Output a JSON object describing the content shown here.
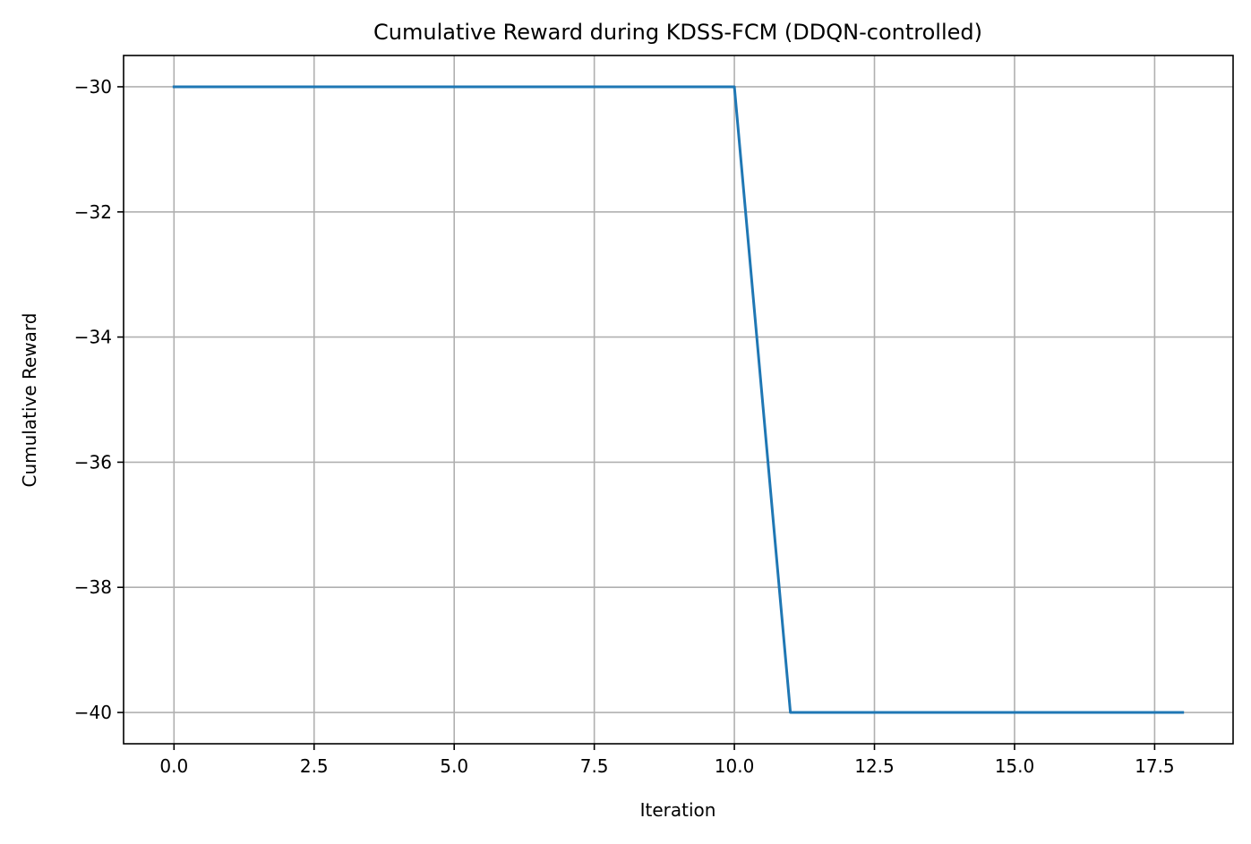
{
  "chart_data": {
    "type": "line",
    "title": "Cumulative Reward during KDSS-FCM (DDQN-controlled)",
    "xlabel": "Iteration",
    "ylabel": "Cumulative Reward",
    "xlim": [
      -0.9,
      18.9
    ],
    "ylim": [
      -40.5,
      -29.5
    ],
    "xticks": [
      0.0,
      2.5,
      5.0,
      7.5,
      10.0,
      12.5,
      15.0,
      17.5
    ],
    "xtick_labels": [
      "0.0",
      "2.5",
      "5.0",
      "7.5",
      "10.0",
      "12.5",
      "15.0",
      "17.5"
    ],
    "yticks": [
      -30,
      -32,
      -34,
      -36,
      -38,
      -40
    ],
    "ytick_labels": [
      "−30",
      "−32",
      "−34",
      "−36",
      "−38",
      "−40"
    ],
    "grid": true,
    "series": [
      {
        "color": "#1f77b4",
        "x": [
          0,
          1,
          2,
          3,
          4,
          5,
          6,
          7,
          8,
          9,
          10,
          11,
          12,
          13,
          14,
          15,
          16,
          17,
          18
        ],
        "y": [
          -30,
          -30,
          -30,
          -30,
          -30,
          -30,
          -30,
          -30,
          -30,
          -30,
          -30,
          -40,
          -40,
          -40,
          -40,
          -40,
          -40,
          -40,
          -40
        ]
      }
    ]
  }
}
